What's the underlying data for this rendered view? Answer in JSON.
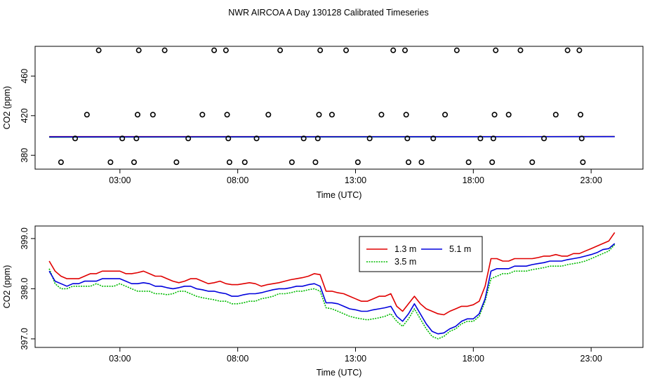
{
  "figure": {
    "title": "NWR AIRCOA A  Day 130128  Calibrated Timeseries"
  },
  "chart_data": [
    {
      "type": "scatter",
      "title": "",
      "xlabel": "Time (UTC)",
      "ylabel": "CO2 (ppm)",
      "xlim": [
        -0.6,
        25.2
      ],
      "ylim": [
        366,
        490
      ],
      "x_ticks": [
        3,
        8,
        13,
        18,
        23
      ],
      "x_tick_labels": [
        "03:00",
        "08:00",
        "13:00",
        "18:00",
        "23:00"
      ],
      "y_ticks": [
        380,
        420,
        460
      ],
      "y_tick_labels": [
        "380",
        "420",
        "460"
      ],
      "points": [
        {
          "x": 0.5,
          "y": 373
        },
        {
          "x": 1.1,
          "y": 397
        },
        {
          "x": 1.6,
          "y": 421
        },
        {
          "x": 2.1,
          "y": 486
        },
        {
          "x": 2.6,
          "y": 373
        },
        {
          "x": 3.1,
          "y": 397
        },
        {
          "x": 3.6,
          "y": 373
        },
        {
          "x": 3.7,
          "y": 397
        },
        {
          "x": 3.75,
          "y": 421
        },
        {
          "x": 3.8,
          "y": 486
        },
        {
          "x": 4.4,
          "y": 421
        },
        {
          "x": 4.9,
          "y": 486
        },
        {
          "x": 5.4,
          "y": 373
        },
        {
          "x": 5.9,
          "y": 397
        },
        {
          "x": 6.5,
          "y": 421
        },
        {
          "x": 7.0,
          "y": 486
        },
        {
          "x": 7.5,
          "y": 486
        },
        {
          "x": 7.55,
          "y": 421
        },
        {
          "x": 7.6,
          "y": 397
        },
        {
          "x": 7.65,
          "y": 373
        },
        {
          "x": 8.3,
          "y": 373
        },
        {
          "x": 8.8,
          "y": 397
        },
        {
          "x": 9.3,
          "y": 421
        },
        {
          "x": 9.8,
          "y": 486
        },
        {
          "x": 10.3,
          "y": 373
        },
        {
          "x": 10.8,
          "y": 397
        },
        {
          "x": 11.3,
          "y": 373
        },
        {
          "x": 11.4,
          "y": 397
        },
        {
          "x": 11.45,
          "y": 421
        },
        {
          "x": 11.5,
          "y": 486
        },
        {
          "x": 12.0,
          "y": 421
        },
        {
          "x": 12.6,
          "y": 486
        },
        {
          "x": 13.1,
          "y": 373
        },
        {
          "x": 13.6,
          "y": 397
        },
        {
          "x": 14.1,
          "y": 421
        },
        {
          "x": 14.6,
          "y": 486
        },
        {
          "x": 15.1,
          "y": 486
        },
        {
          "x": 15.15,
          "y": 421
        },
        {
          "x": 15.2,
          "y": 397
        },
        {
          "x": 15.25,
          "y": 373
        },
        {
          "x": 15.8,
          "y": 373
        },
        {
          "x": 16.3,
          "y": 397
        },
        {
          "x": 16.8,
          "y": 421
        },
        {
          "x": 17.3,
          "y": 486
        },
        {
          "x": 17.8,
          "y": 373
        },
        {
          "x": 18.3,
          "y": 397
        },
        {
          "x": 18.8,
          "y": 373
        },
        {
          "x": 18.85,
          "y": 397
        },
        {
          "x": 18.9,
          "y": 421
        },
        {
          "x": 18.95,
          "y": 486
        },
        {
          "x": 19.5,
          "y": 421
        },
        {
          "x": 20.0,
          "y": 486
        },
        {
          "x": 20.5,
          "y": 373
        },
        {
          "x": 21.0,
          "y": 397
        },
        {
          "x": 21.5,
          "y": 421
        },
        {
          "x": 22.0,
          "y": 486
        },
        {
          "x": 22.5,
          "y": 486
        },
        {
          "x": 22.55,
          "y": 421
        },
        {
          "x": 22.6,
          "y": 397
        },
        {
          "x": 22.65,
          "y": 373
        }
      ],
      "series": [
        {
          "name": "1.3 m",
          "color": "#e00000",
          "x": [
            0,
            24
          ],
          "values": [
            398.8,
            398.9
          ]
        },
        {
          "name": "3.5 m",
          "color": "#00bb00",
          "x": [
            0,
            24
          ],
          "values": [
            398.3,
            398.8
          ]
        },
        {
          "name": "5.1 m",
          "color": "#0000dd",
          "x": [
            0,
            24
          ],
          "values": [
            398.5,
            398.8
          ]
        }
      ]
    },
    {
      "type": "line",
      "title": "",
      "xlabel": "Time (UTC)",
      "ylabel": "CO2 (ppm)",
      "xlim": [
        -0.6,
        25.2
      ],
      "ylim": [
        396.83,
        399.25
      ],
      "x_ticks": [
        3,
        8,
        13,
        18,
        23
      ],
      "x_tick_labels": [
        "03:00",
        "08:00",
        "13:00",
        "18:00",
        "23:00"
      ],
      "y_ticks": [
        397.0,
        398.0,
        399.0
      ],
      "y_tick_labels": [
        "397.0",
        "398.0",
        "399.0"
      ],
      "legend": {
        "position": "top-right",
        "columns": 2
      },
      "x": [
        0.0,
        0.25,
        0.5,
        0.75,
        1.0,
        1.25,
        1.5,
        1.75,
        2.0,
        2.25,
        2.5,
        2.75,
        3.0,
        3.25,
        3.5,
        3.75,
        4.0,
        4.25,
        4.5,
        4.75,
        5.0,
        5.25,
        5.5,
        5.75,
        6.0,
        6.25,
        6.5,
        6.75,
        7.0,
        7.25,
        7.5,
        7.75,
        8.0,
        8.25,
        8.5,
        8.75,
        9.0,
        9.25,
        9.5,
        9.75,
        10.0,
        10.25,
        10.5,
        10.75,
        11.0,
        11.25,
        11.5,
        11.75,
        12.0,
        12.25,
        12.5,
        12.75,
        13.0,
        13.25,
        13.5,
        13.75,
        14.0,
        14.25,
        14.5,
        14.75,
        15.0,
        15.25,
        15.5,
        15.75,
        16.0,
        16.25,
        16.5,
        16.75,
        17.0,
        17.25,
        17.5,
        17.75,
        18.0,
        18.25,
        18.5,
        18.75,
        19.0,
        19.25,
        19.5,
        19.75,
        20.0,
        20.25,
        20.5,
        20.75,
        21.0,
        21.25,
        21.5,
        21.75,
        22.0,
        22.25,
        22.5,
        22.75,
        23.0,
        23.25,
        23.5,
        23.75,
        24.0
      ],
      "series": [
        {
          "name": "1.3 m",
          "color": "#e00000",
          "values": [
            398.55,
            398.35,
            398.25,
            398.2,
            398.2,
            398.2,
            398.25,
            398.3,
            398.3,
            398.35,
            398.35,
            398.35,
            398.35,
            398.3,
            398.3,
            398.32,
            398.35,
            398.3,
            398.25,
            398.25,
            398.2,
            398.15,
            398.12,
            398.15,
            398.2,
            398.2,
            398.15,
            398.1,
            398.12,
            398.15,
            398.1,
            398.08,
            398.08,
            398.1,
            398.12,
            398.1,
            398.05,
            398.08,
            398.1,
            398.12,
            398.15,
            398.18,
            398.2,
            398.22,
            398.25,
            398.3,
            398.28,
            397.95,
            397.95,
            397.92,
            397.9,
            397.85,
            397.8,
            397.75,
            397.75,
            397.8,
            397.85,
            397.85,
            397.9,
            397.65,
            397.55,
            397.7,
            397.85,
            397.7,
            397.6,
            397.55,
            397.5,
            397.48,
            397.55,
            397.6,
            397.65,
            397.65,
            397.68,
            397.75,
            398.05,
            398.6,
            398.6,
            398.55,
            398.55,
            398.6,
            398.6,
            398.6,
            398.6,
            398.62,
            398.65,
            398.65,
            398.68,
            398.65,
            398.65,
            398.7,
            398.7,
            398.75,
            398.8,
            398.85,
            398.9,
            398.95,
            399.12
          ]
        },
        {
          "name": "3.5 m",
          "color": "#00bb00",
          "values": [
            398.4,
            398.1,
            398.0,
            398.0,
            398.05,
            398.05,
            398.05,
            398.05,
            398.1,
            398.05,
            398.05,
            398.05,
            398.1,
            398.05,
            398.0,
            397.95,
            397.95,
            397.95,
            397.9,
            397.9,
            397.88,
            397.9,
            397.95,
            397.95,
            397.9,
            397.85,
            397.82,
            397.8,
            397.78,
            397.75,
            397.75,
            397.7,
            397.7,
            397.72,
            397.75,
            397.75,
            397.8,
            397.82,
            397.85,
            397.9,
            397.9,
            397.92,
            397.95,
            397.95,
            397.98,
            398.0,
            397.95,
            397.62,
            397.6,
            397.55,
            397.5,
            397.45,
            397.42,
            397.4,
            397.38,
            397.4,
            397.42,
            397.45,
            397.5,
            397.35,
            397.25,
            397.4,
            397.6,
            397.4,
            397.2,
            397.05,
            397.0,
            397.05,
            397.15,
            397.2,
            397.3,
            397.35,
            397.35,
            397.45,
            397.75,
            398.2,
            398.25,
            398.3,
            398.3,
            398.35,
            398.35,
            398.35,
            398.38,
            398.4,
            398.42,
            398.45,
            398.45,
            398.45,
            398.48,
            398.5,
            398.52,
            398.55,
            398.6,
            398.65,
            398.7,
            398.75,
            398.88
          ]
        },
        {
          "name": "5.1 m",
          "color": "#0000dd",
          "values": [
            398.35,
            398.15,
            398.1,
            398.05,
            398.1,
            398.1,
            398.15,
            398.15,
            398.15,
            398.2,
            398.2,
            398.2,
            398.2,
            398.15,
            398.1,
            398.1,
            398.12,
            398.1,
            398.05,
            398.05,
            398.02,
            398.0,
            398.02,
            398.05,
            398.05,
            398.0,
            397.98,
            397.95,
            397.95,
            397.92,
            397.9,
            397.85,
            397.85,
            397.88,
            397.9,
            397.9,
            397.92,
            397.95,
            397.98,
            398.0,
            398.0,
            398.02,
            398.05,
            398.05,
            398.08,
            398.1,
            398.05,
            397.72,
            397.72,
            397.7,
            397.65,
            397.6,
            397.58,
            397.55,
            397.55,
            397.58,
            397.6,
            397.62,
            397.65,
            397.45,
            397.35,
            397.5,
            397.7,
            397.5,
            397.3,
            397.15,
            397.1,
            397.12,
            397.2,
            397.25,
            397.35,
            397.4,
            397.4,
            397.5,
            397.8,
            398.35,
            398.4,
            398.4,
            398.4,
            398.45,
            398.45,
            398.45,
            398.48,
            398.5,
            398.52,
            398.55,
            398.55,
            398.55,
            398.58,
            398.6,
            398.62,
            398.65,
            398.68,
            398.72,
            398.78,
            398.8,
            398.9
          ]
        }
      ]
    }
  ]
}
